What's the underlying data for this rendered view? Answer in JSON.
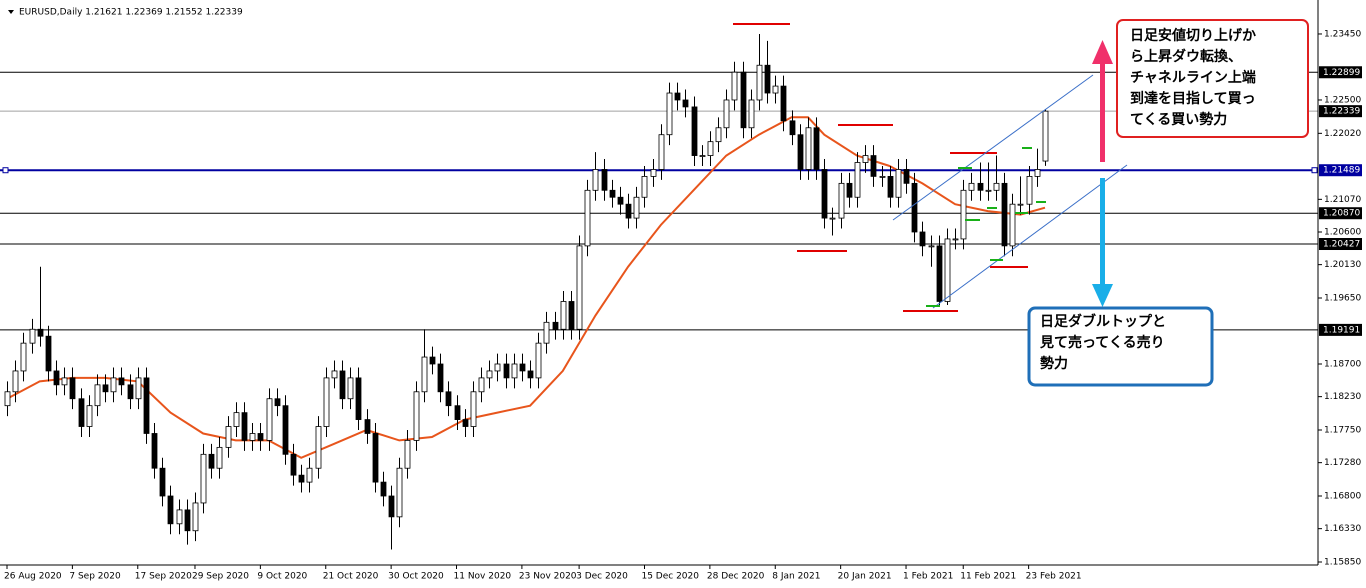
{
  "chart_data": {
    "type": "candlestick",
    "title": "EURUSD,Daily  1.21621 1.22369 1.21552 1.22339",
    "up_color": "#ffffff",
    "down_color": "#000000",
    "ylim": [
      1.15807,
      1.23867
    ],
    "yticks": [
      {
        "value": 1.2345,
        "label": "1.23450"
      },
      {
        "value": 1.225,
        "label": "1.22500"
      },
      {
        "value": 1.2202,
        "label": "1.22020"
      },
      {
        "value": 1.2107,
        "label": "1.21070"
      },
      {
        "value": 1.206,
        "label": "1.20600"
      },
      {
        "value": 1.2013,
        "label": "1.20130"
      },
      {
        "value": 1.1965,
        "label": "1.19650"
      },
      {
        "value": 1.187,
        "label": "1.18700"
      },
      {
        "value": 1.1823,
        "label": "1.18230"
      },
      {
        "value": 1.1775,
        "label": "1.17750"
      },
      {
        "value": 1.1728,
        "label": "1.17280"
      },
      {
        "value": 1.168,
        "label": "1.16800"
      },
      {
        "value": 1.1633,
        "label": "1.16330"
      },
      {
        "value": 1.1585,
        "label": "1.15850"
      }
    ],
    "levels": [
      {
        "value": 1.22899,
        "color": "#000000"
      },
      {
        "value": 1.22339,
        "color": "#a0a0a0"
      },
      {
        "value": 1.21489,
        "color": "#0000a0"
      },
      {
        "value": {
          "value": 1.2087,
          "label": "1.20870"
        },
        "color": "#000000"
      },
      {
        "value": 1.20427,
        "color": "#000000"
      },
      {
        "value": 1.19191,
        "color": "#000000"
      }
    ],
    "categories": [
      "26 Aug 2020",
      null,
      null,
      null,
      null,
      null,
      null,
      null,
      "7 Sep 2020",
      null,
      null,
      null,
      null,
      null,
      null,
      null,
      "17 Sep 2020",
      null,
      null,
      null,
      null,
      null,
      null,
      "29 Sep 2020",
      null,
      null,
      null,
      null,
      null,
      null,
      null,
      "9 Oct 2020",
      null,
      null,
      null,
      null,
      null,
      null,
      null,
      "21 Oct 2020",
      null,
      null,
      null,
      null,
      null,
      null,
      null,
      "30 Oct 2020",
      null,
      null,
      null,
      null,
      null,
      null,
      null,
      "11 Nov 2020",
      null,
      null,
      null,
      null,
      null,
      null,
      null,
      "23 Nov 2020",
      null,
      null,
      null,
      null,
      null,
      null,
      "3 Dec 2020",
      null,
      null,
      null,
      null,
      null,
      null,
      null,
      "15 Dec 2020",
      null,
      null,
      null,
      null,
      null,
      null,
      null,
      "28 Dec 2020",
      null,
      null,
      null,
      null,
      null,
      null,
      null,
      "8 Jan 2021",
      null,
      null,
      null,
      null,
      null,
      null,
      null,
      "20 Jan 2021",
      null,
      null,
      null,
      null,
      null,
      null,
      null,
      "1 Feb 2021",
      null,
      null,
      null,
      null,
      null,
      null,
      "11 Feb 2021",
      null,
      null,
      null,
      null,
      null,
      null,
      null,
      "23 Feb 2021",
      null,
      null
    ],
    "ohlc": [
      [
        1.181,
        1.1845,
        1.1795,
        1.183
      ],
      [
        1.183,
        1.1875,
        1.1815,
        1.186
      ],
      [
        1.186,
        1.1915,
        1.1845,
        1.19
      ],
      [
        1.19,
        1.1935,
        1.1885,
        1.192
      ],
      [
        1.192,
        1.201,
        1.1895,
        1.191
      ],
      [
        1.191,
        1.1925,
        1.1845,
        1.186
      ],
      [
        1.186,
        1.1875,
        1.1825,
        1.184
      ],
      [
        1.184,
        1.1865,
        1.1825,
        1.185
      ],
      [
        1.185,
        1.1865,
        1.1805,
        1.182
      ],
      [
        1.182,
        1.1835,
        1.1765,
        1.178
      ],
      [
        1.178,
        1.1825,
        1.1765,
        1.181
      ],
      [
        1.181,
        1.1855,
        1.1795,
        1.184
      ],
      [
        1.184,
        1.1855,
        1.1815,
        1.183
      ],
      [
        1.183,
        1.1865,
        1.1815,
        1.185
      ],
      [
        1.185,
        1.1865,
        1.1825,
        1.184
      ],
      [
        1.184,
        1.1855,
        1.1805,
        1.182
      ],
      [
        1.182,
        1.1865,
        1.1805,
        1.185
      ],
      [
        1.185,
        1.1865,
        1.1755,
        1.177
      ],
      [
        1.177,
        1.1785,
        1.1705,
        1.172
      ],
      [
        1.172,
        1.1735,
        1.1665,
        1.168
      ],
      [
        1.168,
        1.1695,
        1.1625,
        1.164
      ],
      [
        1.164,
        1.1675,
        1.1625,
        1.166
      ],
      [
        1.166,
        1.1675,
        1.161,
        1.163
      ],
      [
        1.163,
        1.1685,
        1.1615,
        1.167
      ],
      [
        1.167,
        1.1755,
        1.1655,
        1.174
      ],
      [
        1.174,
        1.1755,
        1.1705,
        1.172
      ],
      [
        1.172,
        1.1765,
        1.1705,
        1.175
      ],
      [
        1.175,
        1.1795,
        1.1735,
        1.178
      ],
      [
        1.178,
        1.1815,
        1.1765,
        1.18
      ],
      [
        1.18,
        1.1815,
        1.1745,
        1.176
      ],
      [
        1.176,
        1.1785,
        1.1745,
        1.177
      ],
      [
        1.177,
        1.1785,
        1.1745,
        1.176
      ],
      [
        1.176,
        1.1835,
        1.1745,
        1.182
      ],
      [
        1.182,
        1.1835,
        1.1795,
        1.181
      ],
      [
        1.181,
        1.1825,
        1.1725,
        1.174
      ],
      [
        1.174,
        1.1755,
        1.1695,
        1.171
      ],
      [
        1.171,
        1.1725,
        1.1685,
        1.17
      ],
      [
        1.17,
        1.1735,
        1.1685,
        1.172
      ],
      [
        1.172,
        1.1795,
        1.1705,
        1.178
      ],
      [
        1.178,
        1.1865,
        1.1765,
        1.185
      ],
      [
        1.185,
        1.1875,
        1.1835,
        1.186
      ],
      [
        1.186,
        1.1875,
        1.1805,
        1.182
      ],
      [
        1.182,
        1.1865,
        1.1805,
        1.185
      ],
      [
        1.185,
        1.1865,
        1.1775,
        1.179
      ],
      [
        1.179,
        1.1805,
        1.1755,
        1.177
      ],
      [
        1.177,
        1.1785,
        1.1685,
        1.17
      ],
      [
        1.17,
        1.1715,
        1.1665,
        1.168
      ],
      [
        1.168,
        1.1695,
        1.1603,
        1.165
      ],
      [
        1.165,
        1.1735,
        1.1635,
        1.172
      ],
      [
        1.172,
        1.1775,
        1.1705,
        1.176
      ],
      [
        1.176,
        1.1845,
        1.1745,
        1.183
      ],
      [
        1.183,
        1.192,
        1.1815,
        1.188
      ],
      [
        1.188,
        1.1895,
        1.1855,
        1.187
      ],
      [
        1.187,
        1.1885,
        1.1815,
        1.183
      ],
      [
        1.183,
        1.1845,
        1.1795,
        1.181
      ],
      [
        1.181,
        1.1825,
        1.1775,
        1.179
      ],
      [
        1.179,
        1.1805,
        1.1765,
        1.178
      ],
      [
        1.178,
        1.1845,
        1.1765,
        1.183
      ],
      [
        1.183,
        1.1865,
        1.1815,
        1.185
      ],
      [
        1.185,
        1.1875,
        1.1835,
        1.186
      ],
      [
        1.186,
        1.1885,
        1.1845,
        1.187
      ],
      [
        1.187,
        1.1885,
        1.1835,
        1.185
      ],
      [
        1.185,
        1.1885,
        1.1835,
        1.187
      ],
      [
        1.187,
        1.1885,
        1.1845,
        1.186
      ],
      [
        1.186,
        1.1875,
        1.1835,
        1.185
      ],
      [
        1.185,
        1.1915,
        1.1835,
        1.19
      ],
      [
        1.19,
        1.1945,
        1.1885,
        1.193
      ],
      [
        1.193,
        1.1945,
        1.1905,
        1.192
      ],
      [
        1.192,
        1.1975,
        1.1905,
        1.196
      ],
      [
        1.196,
        1.1975,
        1.1905,
        1.192
      ],
      [
        1.192,
        1.2055,
        1.1905,
        1.204
      ],
      [
        1.204,
        1.2135,
        1.2025,
        1.212
      ],
      [
        1.212,
        1.2175,
        1.2105,
        1.215
      ],
      [
        1.215,
        1.2165,
        1.2105,
        1.212
      ],
      [
        1.212,
        1.2135,
        1.2095,
        1.211
      ],
      [
        1.211,
        1.2125,
        1.2085,
        1.21
      ],
      [
        1.21,
        1.2115,
        1.2065,
        1.208
      ],
      [
        1.208,
        1.2125,
        1.2065,
        1.211
      ],
      [
        1.211,
        1.2155,
        1.2095,
        1.214
      ],
      [
        1.214,
        1.2165,
        1.2125,
        1.215
      ],
      [
        1.215,
        1.2215,
        1.2135,
        1.22
      ],
      [
        1.22,
        1.2275,
        1.2185,
        1.226
      ],
      [
        1.226,
        1.2275,
        1.2235,
        1.225
      ],
      [
        1.225,
        1.2265,
        1.2225,
        1.224
      ],
      [
        1.224,
        1.2255,
        1.2155,
        1.217
      ],
      [
        1.217,
        1.2185,
        1.2155,
        1.217
      ],
      [
        1.217,
        1.2205,
        1.2155,
        1.219
      ],
      [
        1.219,
        1.2225,
        1.2175,
        1.221
      ],
      [
        1.221,
        1.2265,
        1.2195,
        1.225
      ],
      [
        1.225,
        1.2305,
        1.2235,
        1.229
      ],
      [
        1.229,
        1.2305,
        1.2195,
        1.221
      ],
      [
        1.221,
        1.2265,
        1.2195,
        1.225
      ],
      [
        1.225,
        1.2345,
        1.2235,
        1.23
      ],
      [
        1.23,
        1.2335,
        1.2245,
        1.226
      ],
      [
        1.226,
        1.2285,
        1.2245,
        1.227
      ],
      [
        1.227,
        1.2285,
        1.2205,
        1.222
      ],
      [
        1.222,
        1.2235,
        1.2185,
        1.22
      ],
      [
        1.22,
        1.2215,
        1.2135,
        1.215
      ],
      [
        1.215,
        1.2225,
        1.2135,
        1.221
      ],
      [
        1.221,
        1.2225,
        1.2135,
        1.215
      ],
      [
        1.215,
        1.2165,
        1.2065,
        1.208
      ],
      [
        1.208,
        1.2095,
        1.2055,
        1.208
      ],
      [
        1.208,
        1.2145,
        1.2065,
        1.213
      ],
      [
        1.213,
        1.2145,
        1.2095,
        1.211
      ],
      [
        1.211,
        1.2175,
        1.2095,
        1.216
      ],
      [
        1.216,
        1.2185,
        1.2145,
        1.217
      ],
      [
        1.217,
        1.2185,
        1.2125,
        1.214
      ],
      [
        1.214,
        1.2155,
        1.2125,
        1.214
      ],
      [
        1.214,
        1.2155,
        1.2095,
        1.211
      ],
      [
        1.211,
        1.2165,
        1.2095,
        1.215
      ],
      [
        1.215,
        1.2165,
        1.2115,
        1.213
      ],
      [
        1.213,
        1.2145,
        1.2045,
        1.206
      ],
      [
        1.206,
        1.2075,
        1.2025,
        1.204
      ],
      [
        1.204,
        1.2055,
        1.201,
        1.204
      ],
      [
        1.204,
        1.2055,
        1.1952,
        1.196
      ],
      [
        1.196,
        1.2065,
        1.1955,
        1.205
      ],
      [
        1.205,
        1.2065,
        1.2035,
        1.205
      ],
      [
        1.205,
        1.2135,
        1.2035,
        1.212
      ],
      [
        1.212,
        1.2145,
        1.2105,
        1.213
      ],
      [
        1.213,
        1.216,
        1.2105,
        1.212
      ],
      [
        1.212,
        1.216,
        1.2105,
        1.212
      ],
      [
        1.212,
        1.217,
        1.2105,
        1.213
      ],
      [
        1.213,
        1.2145,
        1.2025,
        1.204
      ],
      [
        1.204,
        1.2115,
        1.2025,
        1.21
      ],
      [
        1.21,
        1.214,
        1.2085,
        1.21
      ],
      [
        1.21,
        1.2155,
        1.2085,
        1.214
      ],
      [
        1.214,
        1.218,
        1.2125,
        1.215
      ],
      [
        1.21621,
        1.22369,
        1.21552,
        1.22339
      ]
    ],
    "ma": {
      "color": "#e8551c",
      "x": [
        0,
        4,
        8,
        12,
        16,
        20,
        24,
        28,
        32,
        36,
        40,
        44,
        48,
        52,
        56,
        60,
        64,
        68,
        72,
        76,
        80,
        84,
        88,
        92,
        96,
        98,
        100,
        104,
        108,
        112,
        116,
        120,
        124,
        127
      ],
      "values": [
        1.182,
        1.1845,
        1.185,
        1.185,
        1.1845,
        1.18,
        1.177,
        1.176,
        1.176,
        1.1735,
        1.1755,
        1.1775,
        1.176,
        1.1765,
        1.179,
        1.18,
        1.181,
        1.186,
        1.194,
        1.201,
        1.207,
        1.212,
        1.217,
        1.22,
        1.2225,
        1.2225,
        1.22,
        1.217,
        1.2155,
        1.213,
        1.21,
        1.209,
        1.2085,
        1.2095
      ]
    },
    "annotations": [
      {
        "lines": [
          "日足安値切り上げか",
          "ら上昇ダウ転換、",
          "チャネルライン上端",
          "到達を目指して買っ",
          "てくる買い勢力"
        ]
      },
      {
        "lines": [
          "日足ダブルトップと",
          "見て売ってくる売り",
          "勢力"
        ]
      }
    ]
  }
}
